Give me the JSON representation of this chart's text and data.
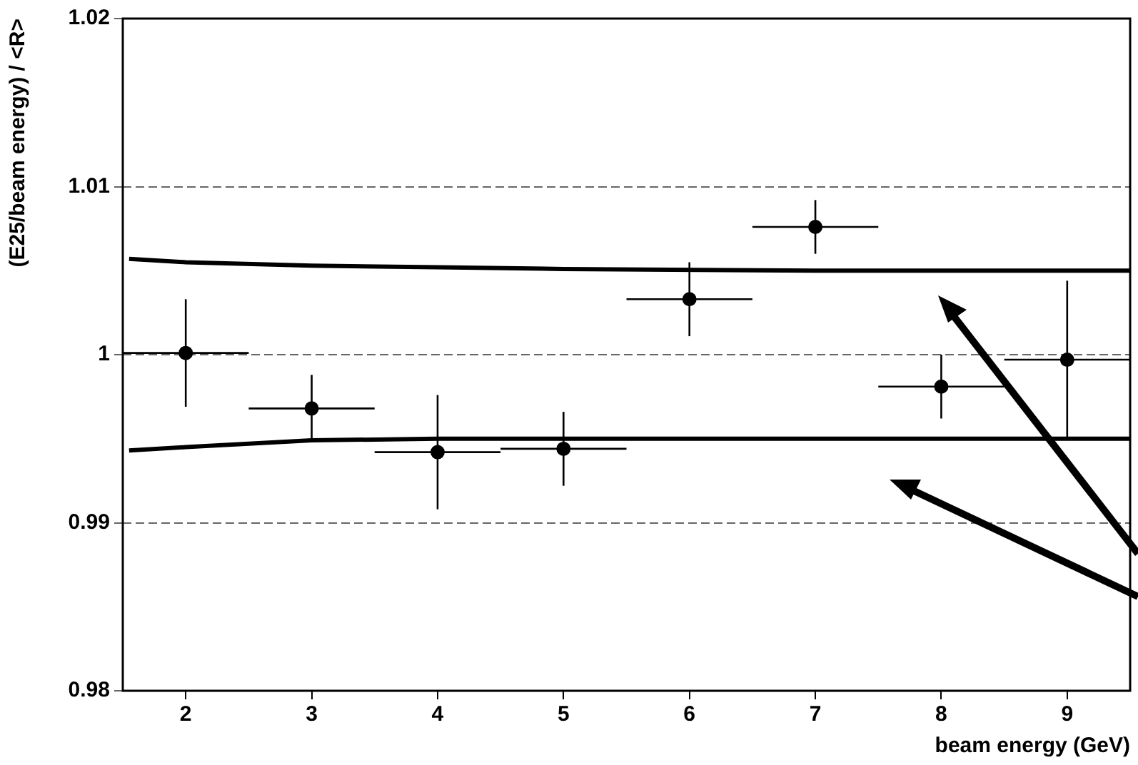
{
  "chart_data": {
    "type": "scatter",
    "xlabel": "beam energy (GeV)",
    "ylabel": "(E25/beam energy) / <R>",
    "xlim": [
      1.5,
      9.5
    ],
    "xticks": [
      2,
      3,
      4,
      5,
      6,
      7,
      8,
      9
    ],
    "ylim": [
      0.98,
      1.02
    ],
    "yticks": [
      0.98,
      0.99,
      1,
      1.01,
      1.02
    ],
    "grid": "y",
    "legend": false,
    "marker": "circle",
    "series": [
      {
        "type": "scatter",
        "color": "#000000",
        "x": [
          2,
          3,
          4,
          5,
          6,
          7,
          8,
          9
        ],
        "values": [
          1.0001,
          0.9968,
          0.9942,
          0.9944,
          1.0033,
          1.0076,
          0.9981,
          0.9997
        ],
        "errors": [
          0.0032,
          0.002,
          0.0034,
          0.0022,
          0.0022,
          0.0016,
          0.0019,
          0.0047
        ],
        "xerrors": [
          0.5,
          0.5,
          0.5,
          0.5,
          0.5,
          0.5,
          0.5,
          0.5
        ]
      },
      {
        "type": "line",
        "color": "#000000",
        "marker": "none",
        "x": [
          1.55,
          2,
          3,
          4,
          5,
          7,
          9.5
        ],
        "values": [
          1.0057,
          1.0055,
          1.0053,
          1.0052,
          1.0051,
          1.005,
          1.005
        ]
      },
      {
        "type": "line",
        "color": "#000000",
        "marker": "none",
        "x": [
          1.55,
          2,
          3,
          4,
          5,
          7,
          9.5
        ],
        "values": [
          0.9943,
          0.9945,
          0.9949,
          0.995,
          0.995,
          0.995,
          0.995
        ]
      }
    ]
  }
}
